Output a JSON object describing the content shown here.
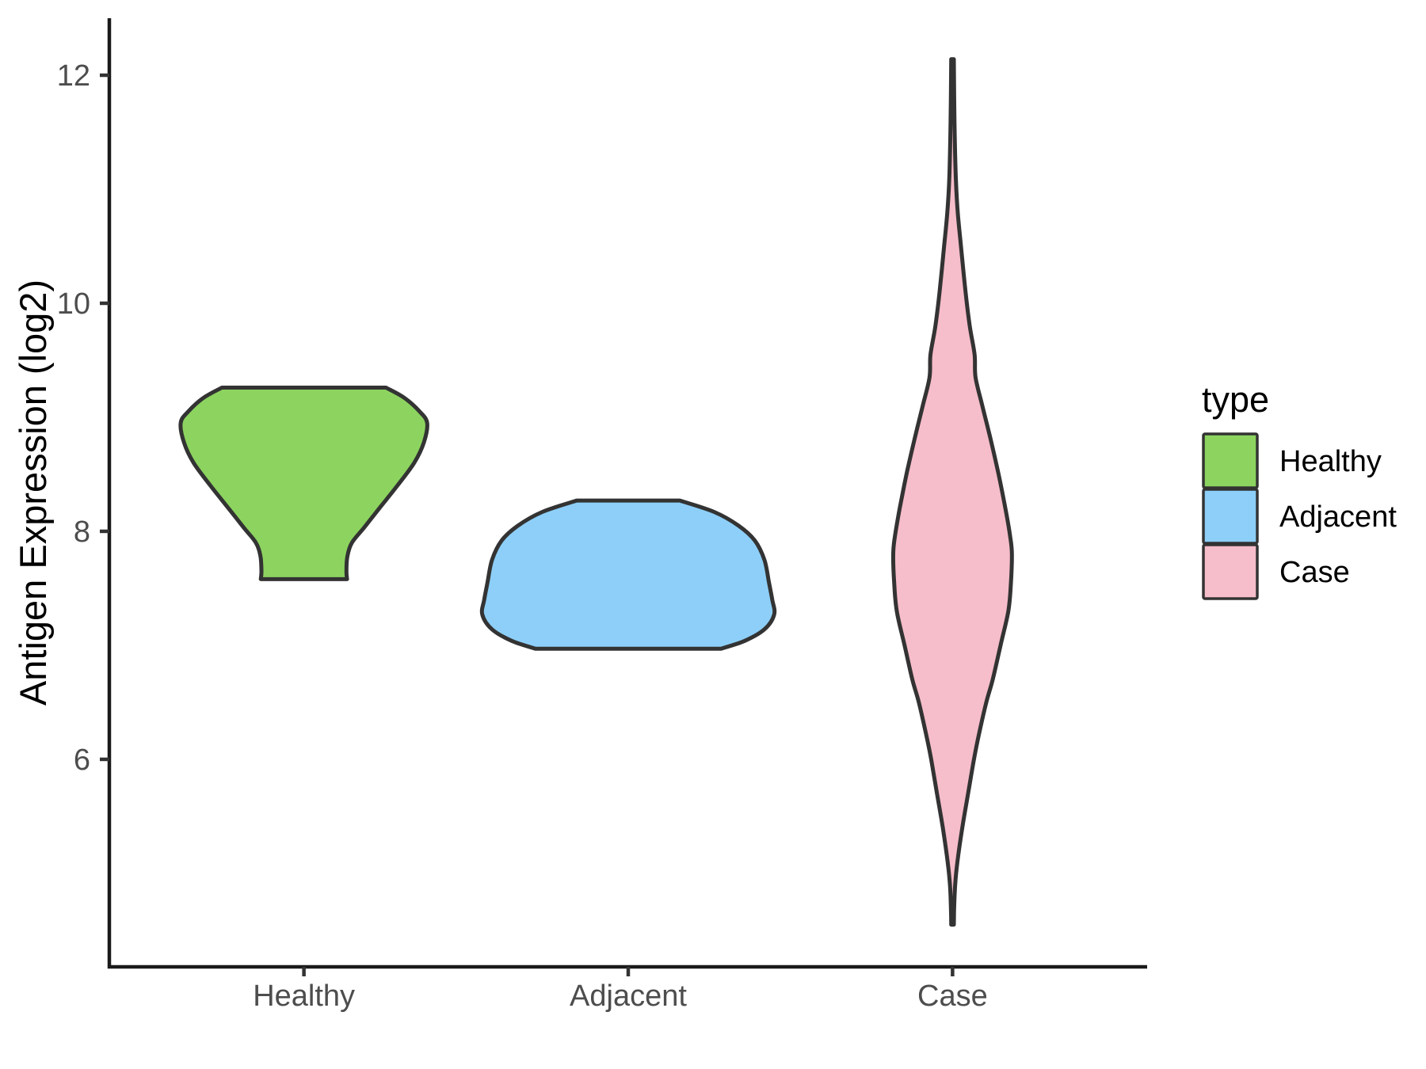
{
  "chart_data": {
    "type": "violin",
    "title": "",
    "xlabel": "",
    "ylabel": "Antigen Expression (log2)",
    "categories": [
      "Healthy",
      "Adjacent",
      "Case"
    ],
    "y_ticks": [
      6,
      8,
      10,
      12
    ],
    "ylim": [
      4.18,
      12.5
    ],
    "x_units_range": [
      0.4,
      3.6
    ],
    "grid": "off",
    "legend": {
      "title": "type",
      "position": "right",
      "entries": [
        {
          "label": "Healthy",
          "color": "#8CD45F"
        },
        {
          "label": "Adjacent",
          "color": "#8DCFF8"
        },
        {
          "label": "Case",
          "color": "#F6BDCA"
        }
      ]
    },
    "style": {
      "outline_color": "#333333",
      "axis_color": "#1A1A1A",
      "tick_color": "#333333",
      "tick_label_color": "#4D4D4D",
      "background": "#FFFFFF"
    },
    "series": [
      {
        "name": "Healthy",
        "color": "#8CD45F",
        "x": 1,
        "value_range": [
          7.58,
          9.26
        ],
        "profile": [
          [
            9.26,
            0.253
          ],
          [
            9.17,
            0.31
          ],
          [
            9.05,
            0.357
          ],
          [
            8.95,
            0.38
          ],
          [
            8.78,
            0.37
          ],
          [
            8.6,
            0.34
          ],
          [
            8.4,
            0.288
          ],
          [
            8.2,
            0.232
          ],
          [
            8.03,
            0.185
          ],
          [
            7.9,
            0.148
          ],
          [
            7.78,
            0.134
          ],
          [
            7.65,
            0.131
          ],
          [
            7.58,
            0.133
          ]
        ]
      },
      {
        "name": "Adjacent",
        "color": "#8DCFF8",
        "x": 2,
        "value_range": [
          6.97,
          8.27
        ],
        "profile": [
          [
            8.27,
            0.159
          ],
          [
            8.17,
            0.265
          ],
          [
            8.05,
            0.34
          ],
          [
            7.92,
            0.39
          ],
          [
            7.75,
            0.42
          ],
          [
            7.55,
            0.434
          ],
          [
            7.4,
            0.444
          ],
          [
            7.27,
            0.45
          ],
          [
            7.14,
            0.42
          ],
          [
            7.04,
            0.36
          ],
          [
            6.97,
            0.286
          ]
        ]
      },
      {
        "name": "Case",
        "color": "#F6BDCA",
        "x": 3,
        "value_range": [
          4.55,
          12.14
        ],
        "profile": [
          [
            12.14,
            0.004
          ],
          [
            11.6,
            0.006
          ],
          [
            11.1,
            0.01
          ],
          [
            10.8,
            0.016
          ],
          [
            10.5,
            0.026
          ],
          [
            10.1,
            0.04
          ],
          [
            9.8,
            0.053
          ],
          [
            9.55,
            0.068
          ],
          [
            9.35,
            0.071
          ],
          [
            9.1,
            0.092
          ],
          [
            8.8,
            0.118
          ],
          [
            8.5,
            0.142
          ],
          [
            8.2,
            0.163
          ],
          [
            7.95,
            0.178
          ],
          [
            7.8,
            0.183
          ],
          [
            7.55,
            0.18
          ],
          [
            7.3,
            0.172
          ],
          [
            7.0,
            0.148
          ],
          [
            6.7,
            0.124
          ],
          [
            6.5,
            0.104
          ],
          [
            6.2,
            0.08
          ],
          [
            6.0,
            0.066
          ],
          [
            5.7,
            0.048
          ],
          [
            5.4,
            0.03
          ],
          [
            5.1,
            0.015
          ],
          [
            4.9,
            0.008
          ],
          [
            4.7,
            0.005
          ],
          [
            4.55,
            0.004
          ]
        ]
      }
    ]
  }
}
